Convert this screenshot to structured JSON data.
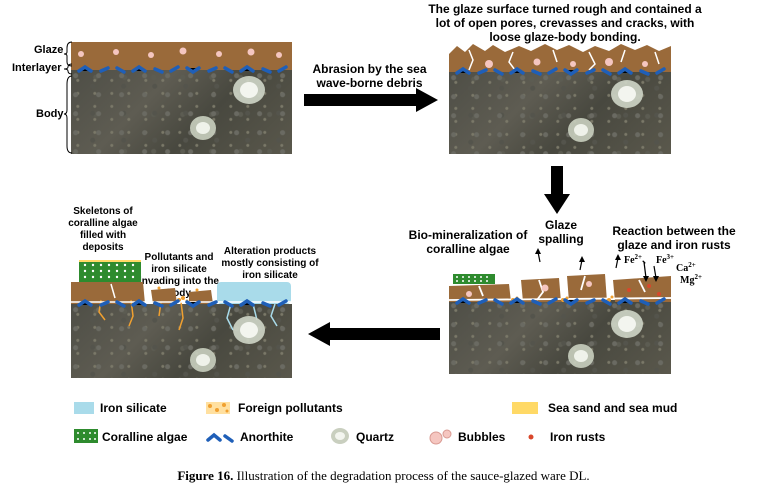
{
  "labels": {
    "glaze": "Glaze",
    "interlayer": "Interlayer",
    "body": "Body",
    "step1_arrow": "Abrasion by the sea wave-borne debris",
    "step1_result": "The glaze surface turned rough and contained a lot of open pores, crevasses and cracks, with loose glaze-body bonding.",
    "glaze_spalling": "Glaze spalling",
    "bio_mineralization": "Bio-mineralization of coralline algae",
    "reaction": "Reaction between the glaze and iron rusts",
    "ions": {
      "fe2": "Fe",
      "fe2_sup": "2+",
      "fe3": "Fe",
      "fe3_sup": "3+",
      "ca": "Ca",
      "ca_sup": "2+",
      "mg": "Mg",
      "mg_sup": "2+",
      "sep": "、"
    },
    "skeletons": "Skeletons of coralline algae filled with deposits",
    "pollutants_invading": "Pollutants and iron silicate invading into the body",
    "alteration": "Alteration products mostly consisting of iron silicate"
  },
  "legend": {
    "iron_silicate": "Iron silicate",
    "foreign_pollutants": "Foreign pollutants",
    "sea_sand": "Sea sand and sea mud",
    "coralline_algae": "Coralline algae",
    "anorthite": "Anorthite",
    "quartz": "Quartz",
    "bubbles": "Bubbles",
    "iron_rusts": "Iron rusts"
  },
  "colors": {
    "glaze": "#9a6a3a",
    "anorthite": "#1f5fb8",
    "iron_silicate": "#a9dbea",
    "foreign_pollutants": "#f0a030",
    "sea_sand": "#ffd966",
    "coralline_algae": "#2e8b2e",
    "iron_rusts": "#d9472b",
    "bubble": "#f5c6c0"
  },
  "caption": {
    "bold": "Figure 16.",
    "text": " Illustration of the degradation process of the sauce-glazed ware DL."
  }
}
